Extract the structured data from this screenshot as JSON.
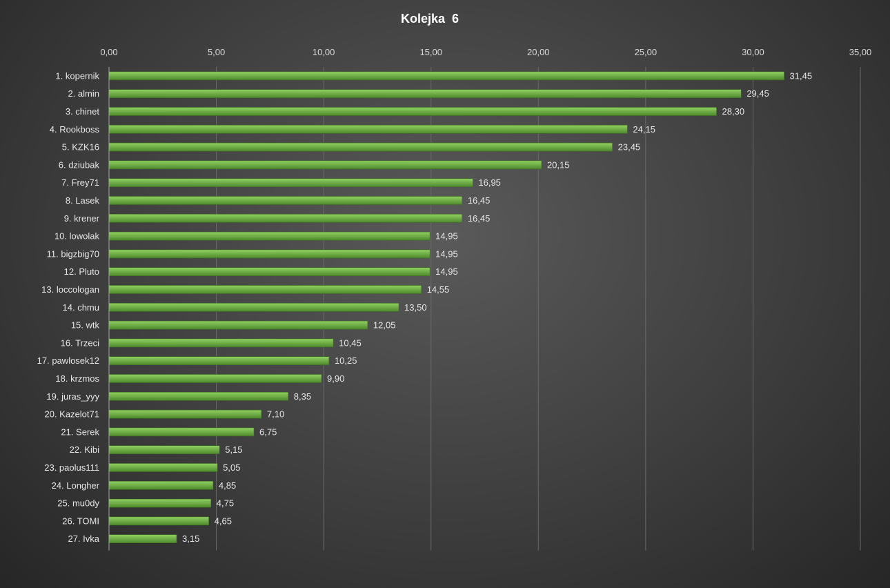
{
  "chart_data": {
    "type": "bar",
    "orientation": "horizontal",
    "title": "Kolejka  6",
    "xlim": [
      0,
      35
    ],
    "x_ticks": [
      "0,00",
      "5,00",
      "10,00",
      "15,00",
      "20,00",
      "25,00",
      "30,00",
      "35,00"
    ],
    "x_axis_position": "top",
    "grid": true,
    "legend": "none",
    "bar_color": "#70ad47",
    "categories": [
      "1. kopernik",
      "2. almin",
      "3. chinet",
      "4. Rookboss",
      "5. KZK16",
      "6. dziubak",
      "7. Frey71",
      "8. Lasek",
      "9. krener",
      "10. lowolak",
      "11. bigzbig70",
      "12. Pluto",
      "13. loccologan",
      "14. chmu",
      "15. wtk",
      "16. Trzeci",
      "17. pawlosek12",
      "18. krzmos",
      "19. juras_yyy",
      "20. Kazelot71",
      "21. Serek",
      "22. Kibi",
      "23. paolus111",
      "24. Longher",
      "25. mu0dy",
      "26. TOMI",
      "27. Ivka"
    ],
    "values": [
      31.45,
      29.45,
      28.3,
      24.15,
      23.45,
      20.15,
      16.95,
      16.45,
      16.45,
      14.95,
      14.95,
      14.95,
      14.55,
      13.5,
      12.05,
      10.45,
      10.25,
      9.9,
      8.35,
      7.1,
      6.75,
      5.15,
      5.05,
      4.85,
      4.75,
      4.65,
      3.15
    ],
    "data_labels": [
      "31,45",
      "29,45",
      "28,30",
      "24,15",
      "23,45",
      "20,15",
      "16,95",
      "16,45",
      "16,45",
      "14,95",
      "14,95",
      "14,95",
      "14,55",
      "13,50",
      "12,05",
      "10,45",
      "10,25",
      "9,90",
      "8,35",
      "7,10",
      "6,75",
      "5,15",
      "5,05",
      "4,85",
      "4,75",
      "4,65",
      "3,15"
    ]
  }
}
